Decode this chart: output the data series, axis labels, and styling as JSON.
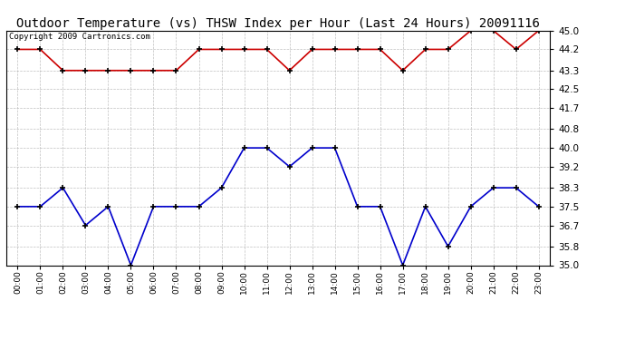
{
  "title": "Outdoor Temperature (vs) THSW Index per Hour (Last 24 Hours) 20091116",
  "copyright": "Copyright 2009 Cartronics.com",
  "hours": [
    "00:00",
    "01:00",
    "02:00",
    "03:00",
    "04:00",
    "05:00",
    "06:00",
    "07:00",
    "08:00",
    "09:00",
    "10:00",
    "11:00",
    "12:00",
    "13:00",
    "14:00",
    "15:00",
    "16:00",
    "17:00",
    "18:00",
    "19:00",
    "20:00",
    "21:00",
    "22:00",
    "23:00"
  ],
  "red_data": [
    44.2,
    44.2,
    43.3,
    43.3,
    43.3,
    43.3,
    43.3,
    43.3,
    44.2,
    44.2,
    44.2,
    44.2,
    43.3,
    44.2,
    44.2,
    44.2,
    44.2,
    43.3,
    44.2,
    44.2,
    45.0,
    45.0,
    44.2,
    45.0
  ],
  "blue_data": [
    37.5,
    37.5,
    38.3,
    36.7,
    37.5,
    35.0,
    37.5,
    37.5,
    37.5,
    38.3,
    40.0,
    40.0,
    39.2,
    40.0,
    40.0,
    37.5,
    37.5,
    35.0,
    37.5,
    35.8,
    37.5,
    38.3,
    38.3,
    37.5
  ],
  "ylim": [
    35.0,
    45.0
  ],
  "yticks": [
    35.0,
    35.8,
    36.7,
    37.5,
    38.3,
    39.2,
    40.0,
    40.8,
    41.7,
    42.5,
    43.3,
    44.2,
    45.0
  ],
  "red_color": "#cc0000",
  "blue_color": "#0000cc",
  "grid_color": "#b0b0b0",
  "bg_color": "#ffffff",
  "title_fontsize": 10,
  "copyright_fontsize": 6.5,
  "tick_fontsize": 7.5,
  "xtick_fontsize": 6.5
}
